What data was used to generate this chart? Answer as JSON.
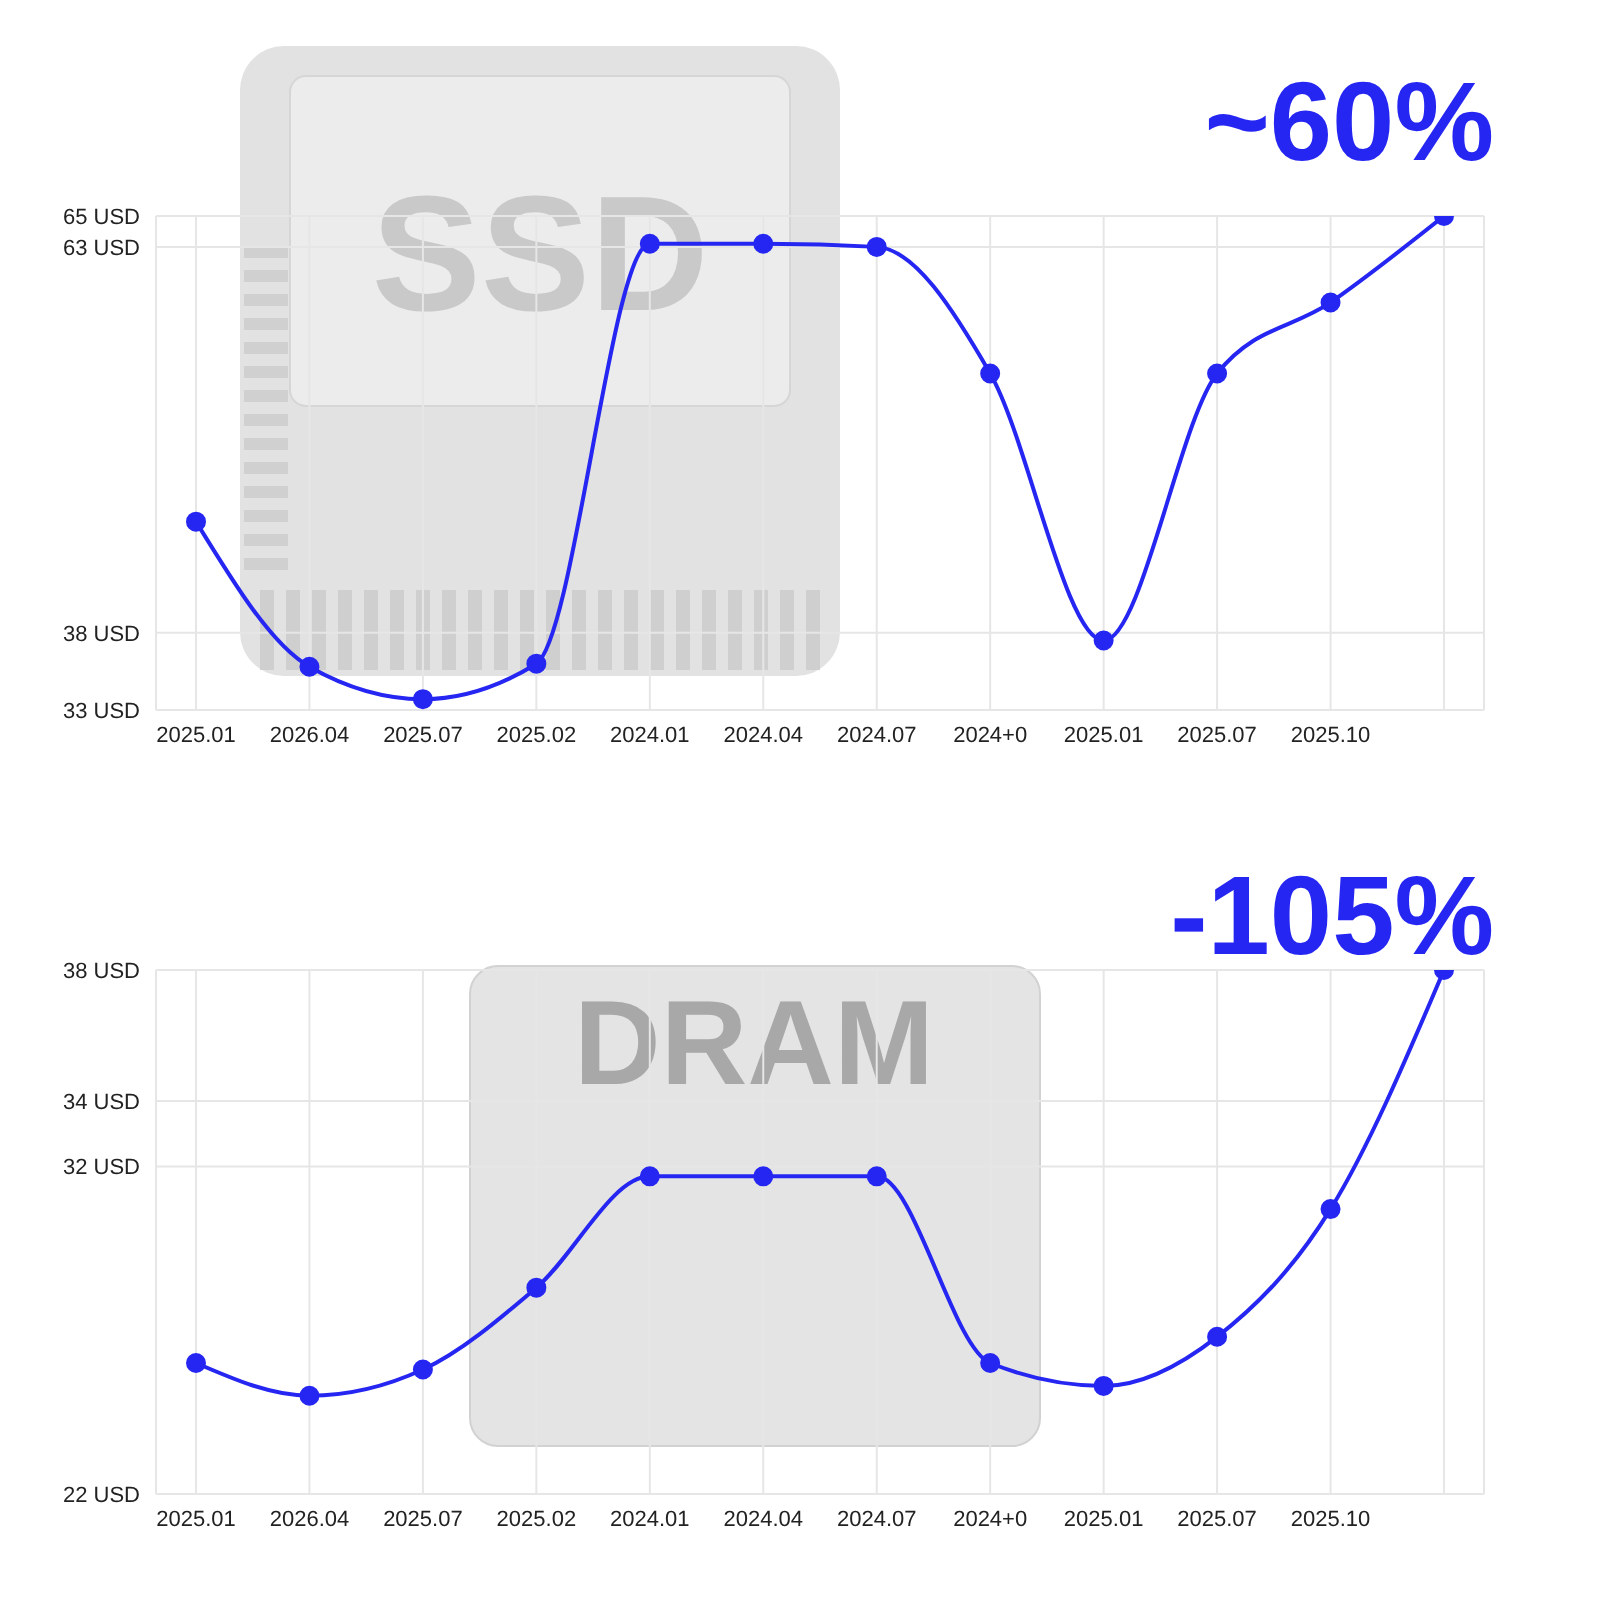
{
  "chart_data": [
    {
      "type": "line",
      "title": "~60%",
      "annotations": [
        "SSD"
      ],
      "categories": [
        "2025.01",
        "2026.04",
        "2025.07",
        "2025.02",
        "2024.01",
        "2024.04",
        "2024.07",
        "2024+0",
        "2025.01",
        "2025.07",
        "2025.10",
        null
      ],
      "series": [
        {
          "color": "#2626f2",
          "values": [
            45.2,
            35.8,
            33.7,
            36.0,
            63.2,
            63.2,
            63.0,
            54.8,
            37.5,
            54.8,
            59.4,
            65
          ]
        }
      ],
      "ylim": [
        33,
        65
      ],
      "yticks": [
        {
          "value": 33,
          "label": "33 USD"
        },
        {
          "value": 38,
          "label": "38 USD"
        },
        {
          "value": 63,
          "label": "63 USD"
        },
        {
          "value": 65,
          "label": "65 USD"
        }
      ],
      "grid": true,
      "marker": "circle",
      "line_style": "solid"
    },
    {
      "type": "line",
      "title": "-105%",
      "annotations": [
        "DRAM"
      ],
      "categories": [
        "2025.01",
        "2026.04",
        "2025.07",
        "2025.02",
        "2024.01",
        "2024.04",
        "2024.07",
        "2024+0",
        "2025.01",
        "2025.07",
        "2025.10",
        null
      ],
      "series": [
        {
          "color": "#2626f2",
          "values": [
            26.0,
            25.0,
            25.8,
            28.3,
            31.7,
            31.7,
            31.7,
            26.0,
            25.3,
            26.8,
            30.7,
            38
          ]
        }
      ],
      "ylim": [
        22,
        38
      ],
      "yticks": [
        {
          "value": 22,
          "label": "22 USD"
        },
        {
          "value": 32,
          "label": "32 USD"
        },
        {
          "value": 34,
          "label": "34 USD"
        },
        {
          "value": 38,
          "label": "38 USD"
        }
      ],
      "grid": true,
      "marker": "circle",
      "line_style": "solid"
    }
  ]
}
